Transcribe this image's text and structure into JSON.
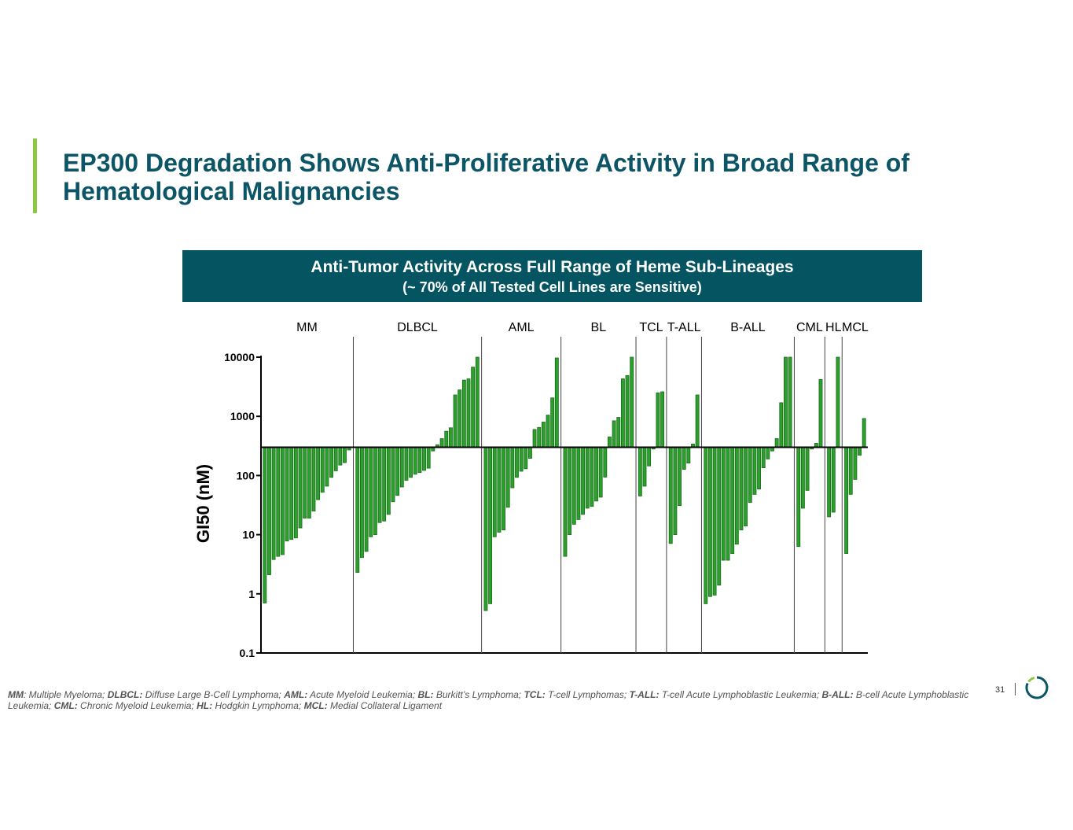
{
  "slide": {
    "title_line1": "EP300 Degradation Shows Anti-Proliferative Activity in Broad Range of",
    "title_line2": "Hematological Malignancies",
    "banner_line1": "Anti-Tumor Activity Across Full Range of Heme Sub-Lineages",
    "banner_line2": "(~ 70% of All Tested Cell Lines are Sensitive)",
    "page_number": "31",
    "accent_color": "#8dc63f",
    "title_color": "#0b5566",
    "banner_color": "#045462"
  },
  "footnote": [
    {
      "abbr": "MM",
      "sep": ":",
      "text": " Multiple Myeloma; "
    },
    {
      "abbr": "DLBCL:",
      "sep": "",
      "text": " Diffuse Large B-Cell Lymphoma; "
    },
    {
      "abbr": "AML:",
      "sep": "",
      "text": " Acute Myeloid Leukemia; "
    },
    {
      "abbr": "BL:",
      "sep": "",
      "text": " Burkitt’s Lymphoma; "
    },
    {
      "abbr": "TCL:",
      "sep": "",
      "text": " T-cell Lymphomas; "
    },
    {
      "abbr": "T-ALL:",
      "sep": "",
      "text": " T-cell Acute Lymphoblastic Leukemia; "
    },
    {
      "abbr": "B-ALL:",
      "sep": "",
      "text": " B-cell Acute Lymphoblastic Leukemia; "
    },
    {
      "abbr": "CML:",
      "sep": "",
      "text": " Chronic Myeloid Leukemia; "
    },
    {
      "abbr": "HL:",
      "sep": "",
      "text": " Hodgkin Lymphoma; "
    },
    {
      "abbr": "MCL:",
      "sep": "",
      "text": " Medial Collateral Ligament"
    }
  ],
  "chart_data": {
    "type": "bar",
    "ylabel": "GI50 (nM)",
    "yscale": "log",
    "ylim": [
      0.1,
      10000
    ],
    "yticks": [
      "10000",
      "1000",
      "100",
      "10",
      "1",
      "0.1"
    ],
    "ytick_values": [
      10000,
      1000,
      100,
      10,
      1,
      0.1
    ],
    "baseline": 300,
    "bar_color": "#2ca02c",
    "bar_edge_color": "#1a6b1a",
    "groups": [
      {
        "name": "MM",
        "values": [
          0.7,
          2.1,
          3.8,
          4.3,
          4.6,
          7.8,
          8.3,
          8.8,
          13,
          19,
          19,
          25,
          39,
          52,
          66,
          93,
          120,
          150,
          165,
          270
        ]
      },
      {
        "name": "DLBCL",
        "values": [
          2.3,
          4.1,
          5.2,
          9.2,
          10,
          16,
          17,
          22,
          36,
          46,
          64,
          83,
          93,
          105,
          112,
          122,
          133,
          260,
          330,
          420,
          560,
          640,
          2300,
          2800,
          4100,
          4300,
          6800,
          10000
        ]
      },
      {
        "name": "AML",
        "values": [
          0.52,
          0.68,
          9.2,
          11,
          12,
          29,
          62,
          93,
          118,
          130,
          195,
          600,
          650,
          800,
          1050,
          2050,
          9700
        ]
      },
      {
        "name": "BL",
        "values": [
          4.3,
          10,
          15,
          18,
          22,
          28,
          30,
          37,
          43,
          94,
          450,
          840,
          960,
          4300,
          4900,
          10000
        ]
      },
      {
        "name": "TCL",
        "values": [
          45,
          66,
          145,
          280,
          2500,
          2600
        ]
      },
      {
        "name": "T-ALL",
        "values": [
          7.1,
          10,
          31,
          127,
          162,
          340,
          2300
        ]
      },
      {
        "name": "B-ALL",
        "values": [
          0.68,
          0.9,
          0.95,
          1.4,
          3.7,
          3.7,
          4.8,
          6.9,
          12,
          14,
          35,
          48,
          59,
          135,
          190,
          260,
          420,
          1700,
          10000,
          10000
        ]
      },
      {
        "name": "CML",
        "values": [
          6.3,
          28,
          56,
          280,
          350,
          4200
        ]
      },
      {
        "name": "HL",
        "values": [
          20,
          24,
          10000
        ]
      },
      {
        "name": "MCL",
        "values": [
          4.8,
          48,
          86,
          220,
          920
        ]
      }
    ]
  }
}
